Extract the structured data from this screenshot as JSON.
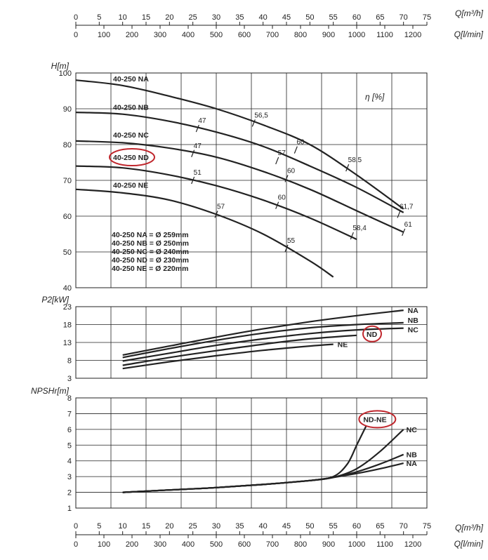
{
  "top_axes": {
    "m3h": {
      "label": "Q[m³/h]",
      "ticks": [
        "0",
        "5",
        "10",
        "15",
        "20",
        "25",
        "30",
        "35",
        "40",
        "45",
        "50",
        "55",
        "60",
        "65",
        "70",
        "75"
      ]
    },
    "lmin": {
      "label": "Q[l/min]",
      "ticks": [
        "0",
        "100",
        "200",
        "300",
        "400",
        "500",
        "600",
        "700",
        "800",
        "900",
        "1000",
        "1100",
        "1200"
      ]
    }
  },
  "bottom_axes": {
    "m3h": {
      "label": "Q[m³/h]",
      "ticks": [
        "0",
        "5",
        "10",
        "15",
        "20",
        "25",
        "30",
        "35",
        "40",
        "45",
        "50",
        "55",
        "60",
        "65",
        "70",
        "75"
      ]
    },
    "lmin": {
      "label": "Q[l/min]",
      "ticks": [
        "0",
        "100",
        "200",
        "300",
        "400",
        "500",
        "600",
        "700",
        "800",
        "900",
        "1000",
        "1100",
        "1200"
      ]
    }
  },
  "highlight_color": "#c0272d",
  "chart_data": [
    {
      "type": "line",
      "id": "head",
      "ylabel": "H[m]",
      "xunit": "m³/h",
      "xlim": [
        0,
        75
      ],
      "ylim": [
        40,
        100
      ],
      "yticks": [
        "40",
        "50",
        "60",
        "70",
        "80",
        "90",
        "100"
      ],
      "series": [
        {
          "name": "40-250 NA",
          "x": [
            0,
            10,
            20,
            30,
            40,
            50,
            60,
            70
          ],
          "y": [
            98.0,
            96.5,
            93.5,
            90.0,
            85.5,
            80.0,
            71.5,
            62.0
          ]
        },
        {
          "name": "40-250 NB",
          "x": [
            0,
            10,
            20,
            30,
            40,
            50,
            60,
            70
          ],
          "y": [
            89.0,
            88.5,
            86.5,
            83.5,
            79.5,
            74.0,
            68.0,
            61.0
          ]
        },
        {
          "name": "40-250 NC",
          "x": [
            0,
            10,
            20,
            30,
            40,
            50,
            60,
            70
          ],
          "y": [
            81.0,
            80.5,
            79.0,
            76.5,
            72.5,
            67.5,
            61.5,
            55.5
          ]
        },
        {
          "name": "40-250 ND",
          "x": [
            0,
            10,
            20,
            30,
            40,
            50,
            60
          ],
          "y": [
            74.0,
            73.5,
            71.5,
            68.5,
            64.5,
            59.5,
            53.5
          ]
        },
        {
          "name": "40-250 NE",
          "x": [
            0,
            10,
            20,
            30,
            40,
            50,
            55
          ],
          "y": [
            67.5,
            66.5,
            64.5,
            60.5,
            55.0,
            47.5,
            43.0
          ]
        }
      ],
      "highlighted_series": "40-250 ND",
      "efficiency_label": "η [%]",
      "efficiency_marks": [
        {
          "label": "56,5",
          "x": 38,
          "y": 86.0
        },
        {
          "label": "47",
          "x": 26,
          "y": 84.5
        },
        {
          "label": "60",
          "x": 47,
          "y": 78.5
        },
        {
          "label": "57",
          "x": 43,
          "y": 75.5
        },
        {
          "label": "47",
          "x": 25,
          "y": 77.5
        },
        {
          "label": "58,5",
          "x": 58,
          "y": 73.5
        },
        {
          "label": "60",
          "x": 45,
          "y": 70.5
        },
        {
          "label": "51",
          "x": 25,
          "y": 70.0
        },
        {
          "label": "60",
          "x": 43,
          "y": 63.0
        },
        {
          "label": "61,7",
          "x": 69,
          "y": 60.5
        },
        {
          "label": "61",
          "x": 70,
          "y": 55.5
        },
        {
          "label": "58,4",
          "x": 59,
          "y": 54.5
        },
        {
          "label": "57",
          "x": 30,
          "y": 60.5
        },
        {
          "label": "55",
          "x": 45,
          "y": 51.0
        }
      ],
      "legend": [
        "40-250 NA = Ø 259mm",
        "40-250 NB = Ø 250mm",
        "40-250 NC = Ø 240mm",
        "40-250 ND = Ø 230mm",
        "40-250 NE = Ø 220mm"
      ]
    },
    {
      "type": "line",
      "id": "power",
      "ylabel": "P2[kW]",
      "xunit": "m³/h",
      "xlim": [
        0,
        75
      ],
      "ylim": [
        3,
        23
      ],
      "yticks": [
        "3",
        "8",
        "13",
        "18",
        "23"
      ],
      "series": [
        {
          "name": "NA",
          "x": [
            10,
            20,
            30,
            40,
            50,
            60,
            70
          ],
          "y": [
            9.5,
            12.0,
            14.5,
            16.8,
            18.8,
            20.5,
            22.0
          ]
        },
        {
          "name": "NB",
          "x": [
            10,
            20,
            30,
            40,
            50,
            60,
            70
          ],
          "y": [
            8.8,
            11.3,
            13.6,
            15.6,
            17.1,
            18.0,
            18.5
          ]
        },
        {
          "name": "NC",
          "x": [
            10,
            20,
            30,
            40,
            50,
            60,
            70
          ],
          "y": [
            7.8,
            10.0,
            12.2,
            14.0,
            15.5,
            16.5,
            17.0
          ]
        },
        {
          "name": "ND",
          "x": [
            10,
            20,
            30,
            40,
            50,
            60
          ],
          "y": [
            6.6,
            8.8,
            10.7,
            12.5,
            14.0,
            15.0
          ]
        },
        {
          "name": "NE",
          "x": [
            10,
            20,
            30,
            40,
            50,
            55
          ],
          "y": [
            5.7,
            7.6,
            9.3,
            10.8,
            12.0,
            12.5
          ]
        }
      ],
      "highlighted_series": "ND"
    },
    {
      "type": "line",
      "id": "npsh",
      "ylabel": "NPSHr[m]",
      "xunit": "m³/h",
      "xlim": [
        0,
        75
      ],
      "ylim": [
        1,
        8
      ],
      "yticks": [
        "1",
        "2",
        "3",
        "4",
        "5",
        "6",
        "7",
        "8"
      ],
      "series": [
        {
          "name": "NA",
          "x": [
            10,
            20,
            30,
            40,
            50,
            55,
            60,
            65,
            70
          ],
          "y": [
            2.0,
            2.15,
            2.3,
            2.5,
            2.75,
            2.95,
            3.2,
            3.5,
            3.85
          ]
        },
        {
          "name": "NB",
          "x": [
            10,
            20,
            30,
            40,
            50,
            55,
            60,
            65,
            70
          ],
          "y": [
            2.0,
            2.15,
            2.3,
            2.5,
            2.75,
            2.95,
            3.3,
            3.8,
            4.4
          ]
        },
        {
          "name": "NC",
          "x": [
            10,
            20,
            30,
            40,
            50,
            55,
            60,
            65,
            70
          ],
          "y": [
            2.0,
            2.15,
            2.3,
            2.5,
            2.75,
            2.95,
            3.5,
            4.6,
            6.0
          ]
        },
        {
          "name": "ND-NE",
          "x": [
            10,
            20,
            30,
            40,
            50,
            55,
            58,
            60,
            62
          ],
          "y": [
            2.0,
            2.15,
            2.3,
            2.5,
            2.75,
            3.0,
            3.8,
            5.0,
            6.2
          ]
        }
      ],
      "highlighted_series": "ND-NE"
    }
  ]
}
